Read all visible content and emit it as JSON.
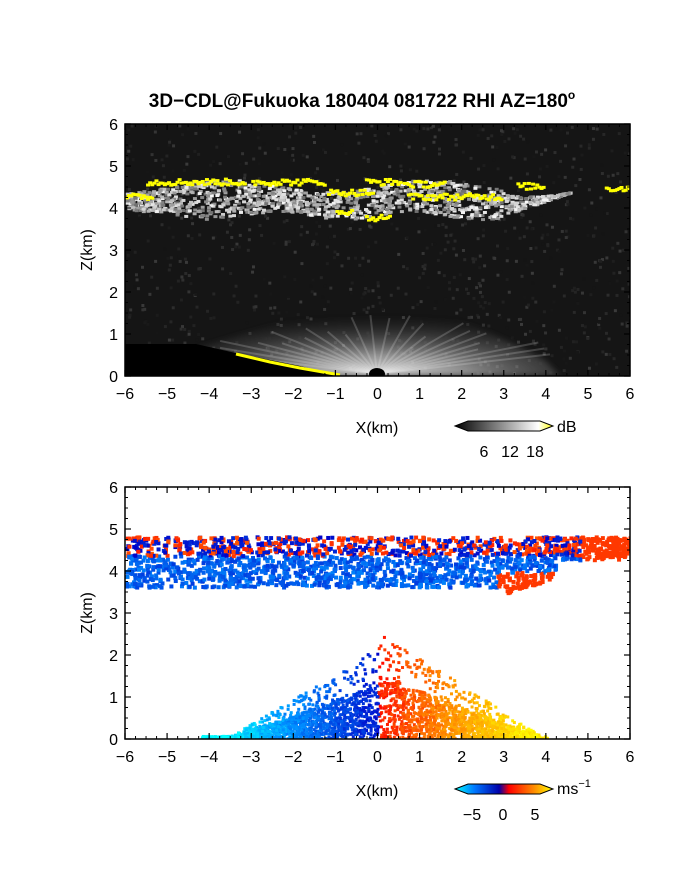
{
  "figure": {
    "title": "3D−CDL@Fukuoka 180404 081722 RHI AZ=180",
    "title_degree": "o"
  },
  "chart_data": [
    {
      "type": "heatmap",
      "name": "reflectivity-panel",
      "xlabel": "X(km)",
      "ylabel": "Z(km)",
      "xlim": [
        -6,
        6
      ],
      "ylim": [
        0,
        6
      ],
      "x_ticks": [
        "−6",
        "−5",
        "−4",
        "−3",
        "−2",
        "−1",
        "0",
        "1",
        "2",
        "3",
        "4",
        "5",
        "6"
      ],
      "y_ticks": [
        "0",
        "1",
        "2",
        "3",
        "4",
        "5",
        "6"
      ],
      "colorbar": {
        "unit": "dB",
        "ticks": [
          "6",
          "12",
          "18"
        ],
        "range": [
          0,
          21
        ],
        "colors": [
          "#000000",
          "#ffffff",
          "#ffff00"
        ]
      },
      "features": [
        {
          "label": "cloud layer",
          "x_range": [
            -6,
            6
          ],
          "z_range": [
            3.6,
            4.8
          ],
          "value_db": 18
        },
        {
          "label": "ground clutter cone",
          "x_range": [
            -4,
            4
          ],
          "z_range": [
            0,
            1.6
          ],
          "value_db": 12
        }
      ]
    },
    {
      "type": "heatmap",
      "name": "doppler-velocity-panel",
      "xlabel": "X(km)",
      "ylabel": "Z(km)",
      "xlim": [
        -6,
        6
      ],
      "ylim": [
        0,
        6
      ],
      "x_ticks": [
        "−6",
        "−5",
        "−4",
        "−3",
        "−2",
        "−1",
        "0",
        "1",
        "2",
        "3",
        "4",
        "5",
        "6"
      ],
      "y_ticks": [
        "0",
        "1",
        "2",
        "3",
        "4",
        "5",
        "6"
      ],
      "colorbar": {
        "unit": "ms",
        "unit_exp": "−1",
        "ticks": [
          "−5",
          "0",
          "5"
        ],
        "range": [
          -6,
          6
        ],
        "colors": [
          "#00ffff",
          "#0055ff",
          "#0000aa",
          "#ff0000",
          "#ff8800",
          "#ffff00"
        ]
      },
      "features": [
        {
          "label": "cloud layer",
          "x_range": [
            -6,
            6
          ],
          "z_range": [
            3.5,
            4.9
          ],
          "velocity_ms": [
            -4,
            3
          ]
        },
        {
          "label": "boundary layer approaching",
          "x_range": [
            -4,
            0
          ],
          "z_range": [
            0,
            2.2
          ],
          "velocity_ms": [
            -5,
            -1
          ]
        },
        {
          "label": "boundary layer receding",
          "x_range": [
            0,
            4
          ],
          "z_range": [
            0,
            2.8
          ],
          "velocity_ms": [
            1,
            5
          ]
        }
      ]
    }
  ]
}
